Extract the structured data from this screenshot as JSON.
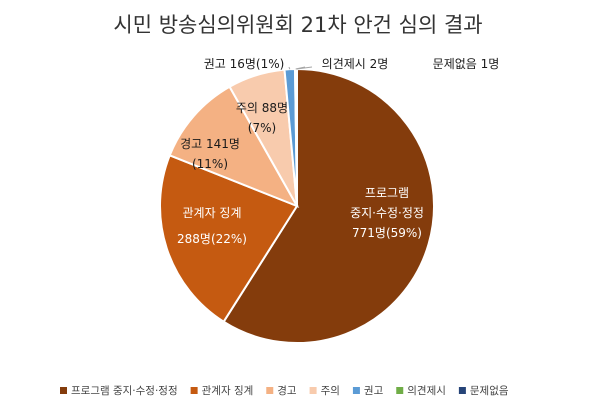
{
  "chart_data": {
    "type": "pie",
    "title": "시민 방송심의위원회 21차 안건 심의 결과",
    "legend_position": "bottom",
    "slices": [
      {
        "name": "프로그램 중지·수정·정정",
        "value": 771,
        "percent": 59,
        "color": "#843C0C",
        "label_lines": [
          "프로그램",
          "중지·수정·정정",
          "771명(59%)"
        ]
      },
      {
        "name": "관계자 징계",
        "value": 288,
        "percent": 22,
        "color": "#C55A11",
        "label_lines": [
          "관계자 징계",
          "288명(22%)"
        ]
      },
      {
        "name": "경고",
        "value": 141,
        "percent": 11,
        "color": "#F4B183",
        "label_lines": [
          "경고 141명",
          "(11%)"
        ]
      },
      {
        "name": "주의",
        "value": 88,
        "percent": 7,
        "color": "#F8CBAD",
        "label_lines": [
          "주의 88명",
          "(7%)"
        ]
      },
      {
        "name": "권고",
        "value": 16,
        "percent": 1,
        "color": "#5B9BD5",
        "label_lines": [
          "권고 16명(1%)"
        ]
      },
      {
        "name": "의견제시",
        "value": 2,
        "color": "#70AD47",
        "label_lines": [
          "의견제시 2명"
        ]
      },
      {
        "name": "문제없음",
        "value": 1,
        "color": "#264478",
        "label_lines": [
          "문제없음 1명"
        ]
      }
    ]
  }
}
